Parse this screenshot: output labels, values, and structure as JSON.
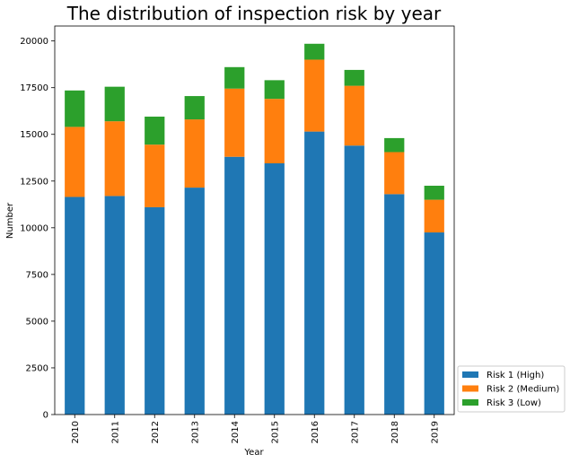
{
  "chart_data": {
    "type": "bar",
    "stacked": true,
    "title": "The distribution of inspection risk by year",
    "xlabel": "Year",
    "ylabel": "Number",
    "categories": [
      "2010",
      "2011",
      "2012",
      "2013",
      "2014",
      "2015",
      "2016",
      "2017",
      "2018",
      "2019"
    ],
    "yticks": [
      "0",
      "2500",
      "5000",
      "7500",
      "10000",
      "12500",
      "15000",
      "17500",
      "20000"
    ],
    "ylim": [
      0,
      20800
    ],
    "grid": false,
    "legend_position": "outside-bottom-right",
    "series": [
      {
        "name": "Risk 1 (High)",
        "color": "#1f77b4",
        "values": [
          11650,
          11700,
          11100,
          12150,
          13800,
          13450,
          15150,
          14400,
          11800,
          9750
        ]
      },
      {
        "name": "Risk 2 (Medium)",
        "color": "#ff7f0e",
        "values": [
          3750,
          4000,
          3350,
          3650,
          3650,
          3450,
          3850,
          3200,
          2250,
          1750
        ]
      },
      {
        "name": "Risk 3 (Low)",
        "color": "#2ca02c",
        "values": [
          1950,
          1850,
          1500,
          1250,
          1150,
          1000,
          850,
          850,
          750,
          750
        ]
      }
    ]
  }
}
